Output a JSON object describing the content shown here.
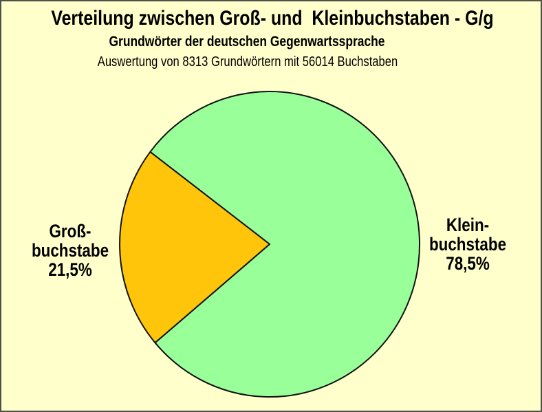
{
  "window": {
    "background_color": "#FFFFCC",
    "border_color": "#50504a"
  },
  "chart_data": {
    "type": "pie",
    "title": "Verteilung zwischen Groß- und  Kleinbuchstaben - G/g",
    "subtitle": "Grundwörter der deutschen Gegenwartssprache",
    "note": "Auswertung von 8313 Grundwörtern mit 56014 Buchstaben",
    "unit": "%",
    "slices": [
      {
        "name": "Großbuchstabe",
        "pct": 21.5,
        "pct_label": "21,5%",
        "color": "#FFC50A",
        "label_lines": "Groß-\nbuchstabe\n21,5%"
      },
      {
        "name": "Kleinbuchstabe",
        "pct": 78.5,
        "pct_label": "78,5%",
        "color": "#99FF99",
        "label_lines": "Klein-\nbuchstabe\n78,5%"
      }
    ],
    "source_counts": {
      "grundwoerter": 8313,
      "buchstaben": 56014
    },
    "layout": {
      "legend": "none",
      "labels": "outside-left-right",
      "gross_slice_mid_angle_deg": 181.5,
      "stroke_color": "#111111",
      "stroke_width": 2,
      "center": [
        390,
        353
      ],
      "radius": [
        218,
        222
      ]
    }
  }
}
